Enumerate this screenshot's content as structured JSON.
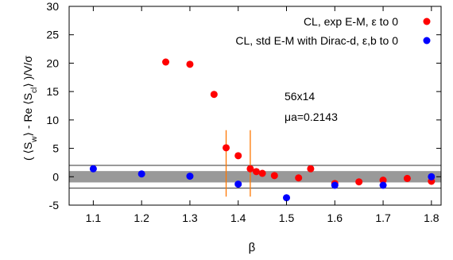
{
  "chart_data": {
    "type": "scatter",
    "xlabel": "β",
    "ylabel_parts": {
      "open": "( ⟨S",
      "sub1": "w",
      "middle": "⟩ - Re ⟨S",
      "sub2": "cl",
      "close": "⟩ )/V/σ"
    },
    "xlim": [
      1.05,
      1.82
    ],
    "ylim": [
      -5,
      30
    ],
    "xticks": [
      "1.1",
      "1.2",
      "1.3",
      "1.4",
      "1.5",
      "1.6",
      "1.7",
      "1.8"
    ],
    "yticks": [
      "-5",
      "0",
      "5",
      "10",
      "15",
      "20",
      "25",
      "30"
    ],
    "series": [
      {
        "name": "CL, exp E-M, ε to 0",
        "color": "#ff0000",
        "points": [
          [
            1.25,
            20.2
          ],
          [
            1.3,
            19.8
          ],
          [
            1.35,
            14.5
          ],
          [
            1.375,
            5.1
          ],
          [
            1.4,
            3.7
          ],
          [
            1.425,
            1.4
          ],
          [
            1.4375,
            0.9
          ],
          [
            1.45,
            0.6
          ],
          [
            1.475,
            0.2
          ],
          [
            1.525,
            -0.2
          ],
          [
            1.55,
            1.4
          ],
          [
            1.6,
            -1.2
          ],
          [
            1.65,
            -0.9
          ],
          [
            1.7,
            -0.6
          ],
          [
            1.75,
            -0.3
          ],
          [
            1.8,
            -0.8
          ]
        ]
      },
      {
        "name": "CL, std E-M with Dirac-d, ε,b to 0",
        "color": "#0000ff",
        "points": [
          [
            1.1,
            1.4
          ],
          [
            1.2,
            0.5
          ],
          [
            1.3,
            0.1
          ],
          [
            1.4,
            -1.3
          ],
          [
            1.5,
            -3.7
          ],
          [
            1.6,
            -1.5
          ],
          [
            1.7,
            -1.5
          ],
          [
            1.8,
            0.0
          ]
        ]
      }
    ],
    "bands": {
      "inner": [
        -1.0,
        1.0
      ],
      "inner_color": "#999999",
      "outer": [
        -2.0,
        2.0
      ],
      "outer_line_color": "#333333"
    },
    "vlines": {
      "x": [
        1.375,
        1.425
      ],
      "y_range": [
        -3.5,
        8.2
      ],
      "color": "#ff7700"
    },
    "annotations": [
      "56x14",
      "μa=0.2143"
    ],
    "legend_position": "top-right",
    "grid": false
  }
}
